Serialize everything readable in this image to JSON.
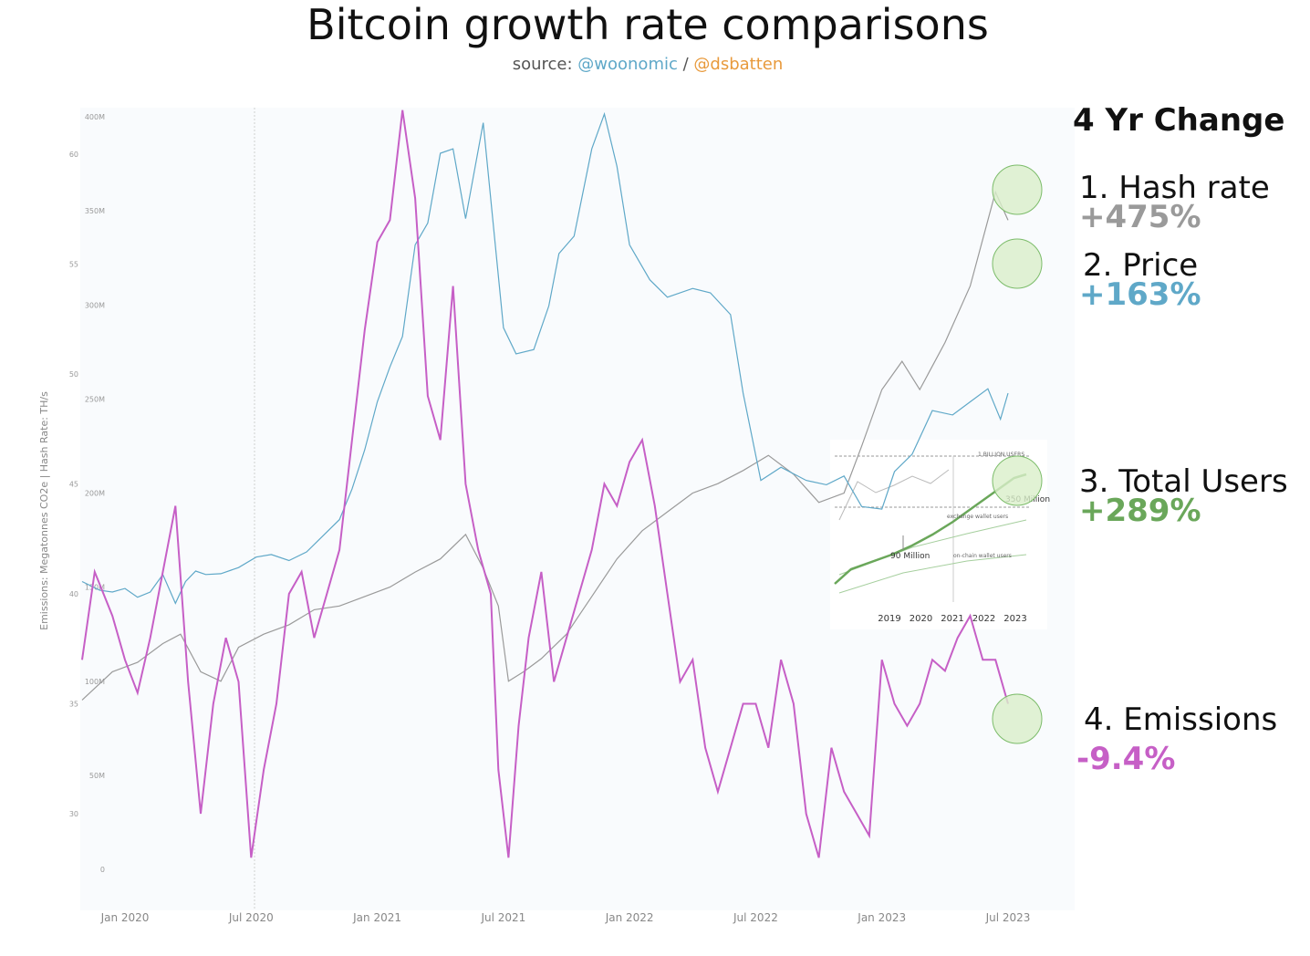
{
  "title": "Bitcoin growth rate comparisons",
  "source": {
    "prefix": "source: ",
    "author1": "@woonomic",
    "sep": " / ",
    "author2": "@dsbatten"
  },
  "panel": {
    "title": "4 Yr Change",
    "stats": [
      {
        "name": "1. Hash rate",
        "value": "+475%",
        "color": "#9a9a9a"
      },
      {
        "name": "2. Price",
        "value": "+163%",
        "color": "#5fa8c8"
      },
      {
        "name": "3. Total Users",
        "value": "+289%",
        "color": "#6aa75a"
      },
      {
        "name": "4. Emissions",
        "value": "-9.4%",
        "color": "#c65fc6"
      }
    ]
  },
  "chart_data": {
    "type": "line",
    "y_axis_label": "Emissions: Megatonnes CO2e | Hash Rate: TH/s",
    "x_ticks": [
      "Jan 2020",
      "Jul 2020",
      "Jan 2021",
      "Jul 2021",
      "Jan 2022",
      "Jul 2022",
      "Jan 2023",
      "Jul 2023"
    ],
    "hash_ticks": [
      "400M",
      "350M",
      "300M",
      "250M",
      "200M",
      "150M",
      "100M",
      "50M",
      "0"
    ],
    "emission_ticks": [
      "60",
      "55",
      "50",
      "45",
      "40",
      "35",
      "30"
    ],
    "colors": {
      "hash": "#9a9a9a",
      "price": "#5fa8c8",
      "emissions": "#c65fc6",
      "users": "#6aa75a"
    },
    "series": [
      {
        "key": "hash",
        "x": [
          2019.83,
          2019.95,
          2020.05,
          2020.15,
          2020.22,
          2020.3,
          2020.38,
          2020.45,
          2020.55,
          2020.65,
          2020.75,
          2020.85,
          2020.95,
          2021.05,
          2021.15,
          2021.25,
          2021.35,
          2021.42,
          2021.48,
          2021.52,
          2021.58,
          2021.65,
          2021.75,
          2021.85,
          2021.95,
          2022.05,
          2022.15,
          2022.25,
          2022.35,
          2022.45,
          2022.55,
          2022.65,
          2022.75,
          2022.85,
          2022.92,
          2023.0,
          2023.08,
          2023.15,
          2023.25,
          2023.35,
          2023.45,
          2023.5
        ],
        "y": [
          90,
          105,
          110,
          120,
          125,
          105,
          100,
          118,
          125,
          130,
          138,
          140,
          145,
          150,
          158,
          165,
          178,
          160,
          140,
          100,
          105,
          112,
          125,
          145,
          165,
          180,
          190,
          200,
          205,
          212,
          220,
          210,
          195,
          200,
          225,
          255,
          270,
          255,
          280,
          310,
          360,
          345
        ]
      },
      {
        "key": "price",
        "x": [
          2019.83,
          2019.9,
          2019.95,
          2020.0,
          2020.05,
          2020.1,
          2020.15,
          2020.2,
          2020.24,
          2020.28,
          2020.32,
          2020.38,
          2020.45,
          2020.52,
          2020.58,
          2020.65,
          2020.72,
          2020.78,
          2020.85,
          2020.9,
          2020.95,
          2021.0,
          2021.05,
          2021.1,
          2021.15,
          2021.2,
          2021.25,
          2021.3,
          2021.35,
          2021.42,
          2021.5,
          2021.55,
          2021.62,
          2021.68,
          2021.72,
          2021.78,
          2021.85,
          2021.9,
          2021.95,
          2022.0,
          2022.08,
          2022.15,
          2022.25,
          2022.32,
          2022.4,
          2022.45,
          2022.52,
          2022.6,
          2022.7,
          2022.78,
          2022.85,
          2022.92,
          2023.0,
          2023.05,
          2023.12,
          2023.2,
          2023.28,
          2023.35,
          2023.42,
          2023.47,
          2023.5
        ],
        "y": [
          8400,
          7400,
          7200,
          7600,
          6600,
          7200,
          9200,
          5900,
          8400,
          9600,
          9200,
          9300,
          10000,
          11200,
          11500,
          10800,
          11800,
          13500,
          15500,
          19000,
          23500,
          29000,
          33000,
          36500,
          47000,
          49500,
          57500,
          58000,
          50000,
          61000,
          37500,
          34500,
          35000,
          40000,
          46000,
          48000,
          58000,
          62000,
          56000,
          47000,
          43000,
          41000,
          42000,
          41500,
          39000,
          30000,
          20000,
          21500,
          20000,
          19500,
          20500,
          17000,
          16700,
          21000,
          23000,
          28000,
          27500,
          29000,
          30500,
          27000,
          30000
        ]
      },
      {
        "key": "emissions",
        "x": [
          2019.83,
          2019.88,
          2019.95,
          2020.0,
          2020.05,
          2020.1,
          2020.15,
          2020.2,
          2020.25,
          2020.3,
          2020.35,
          2020.4,
          2020.45,
          2020.5,
          2020.55,
          2020.6,
          2020.65,
          2020.7,
          2020.75,
          2020.8,
          2020.85,
          2020.9,
          2020.95,
          2021.0,
          2021.05,
          2021.1,
          2021.15,
          2021.2,
          2021.25,
          2021.3,
          2021.35,
          2021.4,
          2021.45,
          2021.48,
          2021.52,
          2021.56,
          2021.6,
          2021.65,
          2021.7,
          2021.75,
          2021.8,
          2021.85,
          2021.9,
          2021.95,
          2022.0,
          2022.05,
          2022.1,
          2022.15,
          2022.2,
          2022.25,
          2022.3,
          2022.35,
          2022.4,
          2022.45,
          2022.5,
          2022.55,
          2022.6,
          2022.65,
          2022.7,
          2022.75,
          2022.8,
          2022.85,
          2022.9,
          2022.95,
          2023.0,
          2023.05,
          2023.1,
          2023.15,
          2023.2,
          2023.25,
          2023.3,
          2023.35,
          2023.4,
          2023.45,
          2023.5
        ],
        "y": [
          37,
          41,
          39,
          37,
          35.5,
          38,
          41,
          44,
          36,
          30,
          35,
          38,
          36,
          28,
          32,
          35,
          40,
          41,
          38,
          40,
          42,
          47,
          52,
          56,
          57,
          62,
          58,
          49,
          47,
          54,
          45,
          42,
          40,
          32,
          28,
          34,
          38,
          41,
          36,
          38,
          40,
          42,
          45,
          44,
          46,
          47,
          44,
          40,
          36,
          37,
          33,
          31,
          33,
          35,
          35,
          33,
          37,
          35,
          30,
          28,
          33,
          31,
          30,
          29,
          37,
          35,
          34,
          35,
          37,
          36.5,
          38,
          39,
          37,
          37,
          35
        ]
      },
      {
        "key": "users",
        "x": [
          2018.6,
          2019.0,
          2019.5,
          2020.0,
          2020.5,
          2021.0,
          2021.5,
          2022.0,
          2022.5,
          2023.0,
          2023.3
        ],
        "y": [
          50,
          90,
          110,
          130,
          155,
          185,
          220,
          260,
          300,
          340,
          350
        ]
      }
    ],
    "inset": {
      "x_ticks": [
        "2019",
        "2020",
        "2021",
        "2022",
        "2023"
      ],
      "annotations": [
        "1 BILLION USERS",
        "350 Million",
        "90 Million",
        "exchange wallet users",
        "on-chain wallet users"
      ]
    }
  }
}
